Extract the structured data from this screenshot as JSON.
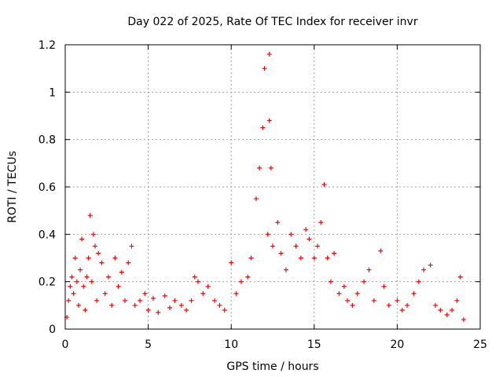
{
  "chart_data": {
    "type": "scatter",
    "title": "Day 022 of 2025, Rate Of TEC Index for receiver invr",
    "xlabel": "GPS time / hours",
    "ylabel": "ROTI / TECUs",
    "xlim": [
      0,
      25
    ],
    "ylim": [
      0,
      1.2
    ],
    "x_ticks": [
      0,
      5,
      10,
      15,
      20,
      25
    ],
    "x_tick_labels": [
      "0",
      "5",
      "10",
      "15",
      "20",
      "25"
    ],
    "y_ticks": [
      0,
      0.2,
      0.4,
      0.6,
      0.8,
      1.0,
      1.2
    ],
    "y_tick_labels": [
      "0",
      "0.2",
      "0.4",
      "0.6",
      "0.8",
      "1",
      "1.2"
    ],
    "grid": true,
    "marker": "+",
    "series": [
      {
        "color": "#ff0000",
        "points": [
          [
            0.1,
            0.05
          ],
          [
            0.2,
            0.12
          ],
          [
            0.3,
            0.18
          ],
          [
            0.4,
            0.22
          ],
          [
            0.5,
            0.15
          ],
          [
            0.6,
            0.3
          ],
          [
            0.7,
            0.2
          ],
          [
            0.8,
            0.1
          ],
          [
            0.9,
            0.25
          ],
          [
            1.0,
            0.38
          ],
          [
            1.1,
            0.18
          ],
          [
            1.2,
            0.08
          ],
          [
            1.3,
            0.22
          ],
          [
            1.4,
            0.3
          ],
          [
            1.5,
            0.48
          ],
          [
            1.6,
            0.2
          ],
          [
            1.7,
            0.4
          ],
          [
            1.8,
            0.35
          ],
          [
            1.9,
            0.12
          ],
          [
            2.0,
            0.32
          ],
          [
            2.2,
            0.28
          ],
          [
            2.4,
            0.15
          ],
          [
            2.6,
            0.22
          ],
          [
            2.8,
            0.1
          ],
          [
            3.0,
            0.3
          ],
          [
            3.2,
            0.18
          ],
          [
            3.4,
            0.24
          ],
          [
            3.6,
            0.12
          ],
          [
            3.8,
            0.28
          ],
          [
            4.0,
            0.35
          ],
          [
            4.2,
            0.1
          ],
          [
            4.5,
            0.12
          ],
          [
            4.8,
            0.15
          ],
          [
            5.0,
            0.08
          ],
          [
            5.3,
            0.13
          ],
          [
            5.6,
            0.07
          ],
          [
            6.0,
            0.14
          ],
          [
            6.3,
            0.09
          ],
          [
            6.6,
            0.12
          ],
          [
            7.0,
            0.1
          ],
          [
            7.3,
            0.08
          ],
          [
            7.6,
            0.12
          ],
          [
            7.8,
            0.22
          ],
          [
            8.0,
            0.2
          ],
          [
            8.3,
            0.15
          ],
          [
            8.6,
            0.18
          ],
          [
            9.0,
            0.12
          ],
          [
            9.3,
            0.1
          ],
          [
            9.6,
            0.08
          ],
          [
            10.0,
            0.28
          ],
          [
            10.3,
            0.15
          ],
          [
            10.6,
            0.2
          ],
          [
            11.0,
            0.22
          ],
          [
            11.2,
            0.3
          ],
          [
            11.5,
            0.55
          ],
          [
            11.7,
            0.68
          ],
          [
            11.9,
            0.85
          ],
          [
            12.0,
            1.1
          ],
          [
            12.2,
            0.4
          ],
          [
            12.3,
            1.16
          ],
          [
            12.3,
            0.88
          ],
          [
            12.4,
            0.68
          ],
          [
            12.5,
            0.35
          ],
          [
            12.8,
            0.45
          ],
          [
            13.0,
            0.32
          ],
          [
            13.3,
            0.25
          ],
          [
            13.6,
            0.4
          ],
          [
            13.9,
            0.35
          ],
          [
            14.2,
            0.3
          ],
          [
            14.5,
            0.42
          ],
          [
            14.7,
            0.38
          ],
          [
            15.0,
            0.3
          ],
          [
            15.2,
            0.35
          ],
          [
            15.4,
            0.45
          ],
          [
            15.6,
            0.61
          ],
          [
            15.8,
            0.3
          ],
          [
            16.0,
            0.2
          ],
          [
            16.2,
            0.32
          ],
          [
            16.5,
            0.15
          ],
          [
            16.8,
            0.18
          ],
          [
            17.0,
            0.12
          ],
          [
            17.3,
            0.1
          ],
          [
            17.6,
            0.15
          ],
          [
            18.0,
            0.2
          ],
          [
            18.3,
            0.25
          ],
          [
            18.6,
            0.12
          ],
          [
            19.0,
            0.33
          ],
          [
            19.2,
            0.18
          ],
          [
            19.5,
            0.1
          ],
          [
            20.0,
            0.12
          ],
          [
            20.3,
            0.08
          ],
          [
            20.6,
            0.1
          ],
          [
            21.0,
            0.15
          ],
          [
            21.3,
            0.2
          ],
          [
            21.6,
            0.25
          ],
          [
            22.0,
            0.27
          ],
          [
            22.3,
            0.1
          ],
          [
            22.6,
            0.08
          ],
          [
            23.0,
            0.06
          ],
          [
            23.3,
            0.08
          ],
          [
            23.6,
            0.12
          ],
          [
            23.8,
            0.22
          ],
          [
            24.0,
            0.04
          ]
        ]
      }
    ]
  }
}
